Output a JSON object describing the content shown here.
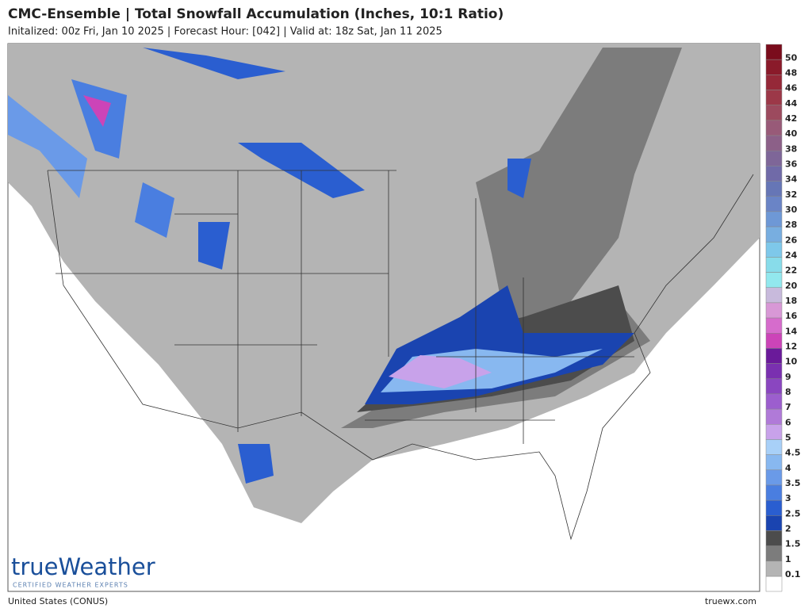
{
  "header": {
    "title": "CMC-Ensemble | Total Snowfall Accumulation (Inches, 10:1 Ratio)",
    "subtitle": "Initalized: 00z Fri, Jan 10 2025  |  Forecast Hour: [042]  |  Valid at: 18z Sat, Jan 11 2025"
  },
  "legend": {
    "items": [
      {
        "label": "50",
        "color": "#7a0c1c"
      },
      {
        "label": "48",
        "color": "#8a1a2a"
      },
      {
        "label": "46",
        "color": "#952838"
      },
      {
        "label": "44",
        "color": "#9c3848"
      },
      {
        "label": "42",
        "color": "#9c4a5e"
      },
      {
        "label": "40",
        "color": "#985a78"
      },
      {
        "label": "38",
        "color": "#8c6088"
      },
      {
        "label": "36",
        "color": "#7e6698"
      },
      {
        "label": "34",
        "color": "#706aa8"
      },
      {
        "label": "32",
        "color": "#6676b6"
      },
      {
        "label": "30",
        "color": "#6a84c6"
      },
      {
        "label": "28",
        "color": "#6e98d6"
      },
      {
        "label": "26",
        "color": "#78aee0"
      },
      {
        "label": "24",
        "color": "#7ec8ea"
      },
      {
        "label": "22",
        "color": "#88dcea"
      },
      {
        "label": "20",
        "color": "#92e8ee"
      },
      {
        "label": "18",
        "color": "#c8badc"
      },
      {
        "label": "16",
        "color": "#d898d6"
      },
      {
        "label": "14",
        "color": "#d66ccc"
      },
      {
        "label": "12",
        "color": "#cc44b8"
      },
      {
        "label": "10",
        "color": "#6a1a9a"
      },
      {
        "label": "9",
        "color": "#7a30b0"
      },
      {
        "label": "8",
        "color": "#8a46c0"
      },
      {
        "label": "7",
        "color": "#9c5ece"
      },
      {
        "label": "6",
        "color": "#b07ad8"
      },
      {
        "label": "5",
        "color": "#c8a2ea"
      },
      {
        "label": "4.5",
        "color": "#a8d0f8"
      },
      {
        "label": "4",
        "color": "#88b8f0"
      },
      {
        "label": "3.5",
        "color": "#6a9ae8"
      },
      {
        "label": "3",
        "color": "#4a7ee0"
      },
      {
        "label": "2.5",
        "color": "#2a5ed0"
      },
      {
        "label": "2",
        "color": "#1a44b0"
      },
      {
        "label": "1.5",
        "color": "#4c4c4c"
      },
      {
        "label": "1",
        "color": "#7c7c7c"
      },
      {
        "label": "0.1",
        "color": "#b4b4b4"
      }
    ]
  },
  "logo": {
    "name": "trueWeather",
    "tagline": "CERTIFIED WEATHER EXPERTS"
  },
  "footer": {
    "region": "United States (CONUS)",
    "site": "truewx.com"
  }
}
